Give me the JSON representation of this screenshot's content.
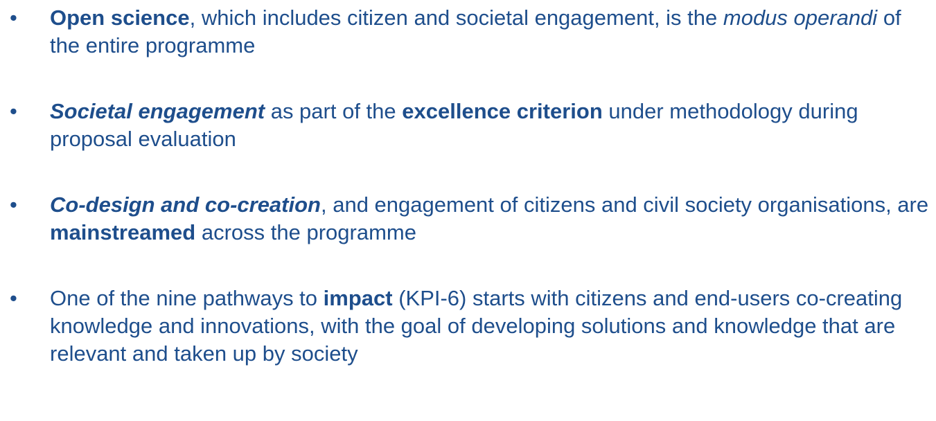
{
  "text_color": "#1e4e8c",
  "bullet_glyph": "•",
  "bullets": [
    {
      "segments": [
        {
          "text": "Open science",
          "style": "b"
        },
        {
          "text": ", which includes citizen and societal engagement, is the ",
          "style": ""
        },
        {
          "text": "modus operandi",
          "style": "i"
        },
        {
          "text": " of the entire programme",
          "style": ""
        }
      ]
    },
    {
      "segments": [
        {
          "text": "Societal engagement",
          "style": "bi"
        },
        {
          "text": " as part of the ",
          "style": ""
        },
        {
          "text": "excellence criterion",
          "style": "b"
        },
        {
          "text": " under methodology during proposal evaluation",
          "style": ""
        }
      ]
    },
    {
      "segments": [
        {
          "text": "Co-design and co-creation",
          "style": "bi"
        },
        {
          "text": ", and engagement of citizens and civil society organisations, are ",
          "style": ""
        },
        {
          "text": "mainstreamed",
          "style": "b"
        },
        {
          "text": " across the programme",
          "style": ""
        }
      ]
    },
    {
      "segments": [
        {
          "text": "One of the nine pathways to ",
          "style": ""
        },
        {
          "text": "impact",
          "style": "b"
        },
        {
          "text": " (KPI-6) starts with citizens and end-users co-creating knowledge and innovations, with the goal of developing solutions and knowledge that are relevant and taken up by society",
          "style": ""
        }
      ]
    }
  ]
}
